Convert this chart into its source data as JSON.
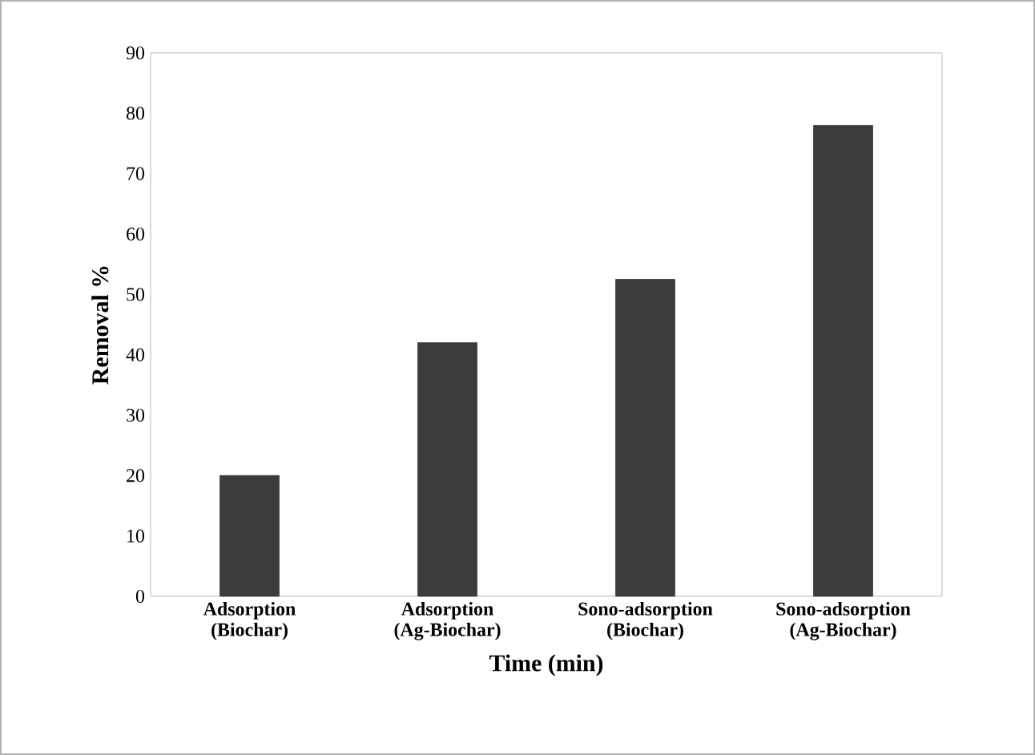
{
  "chart_data": {
    "type": "bar",
    "xlabel": "Time (min)",
    "ylabel": "Removal %",
    "categories": [
      "Adsorption (Biochar)",
      "Adsorption (Ag-Biochar)",
      "Sono-adsorption (Biochar)",
      "Sono-adsorption (Ag-Biochar)"
    ],
    "values": [
      20,
      42,
      52.5,
      78
    ],
    "color": "#3c3c3c",
    "ylim": [
      0,
      90
    ],
    "yticks": [
      0,
      10,
      20,
      30,
      40,
      50,
      60,
      70,
      80,
      90
    ],
    "grid": false
  }
}
